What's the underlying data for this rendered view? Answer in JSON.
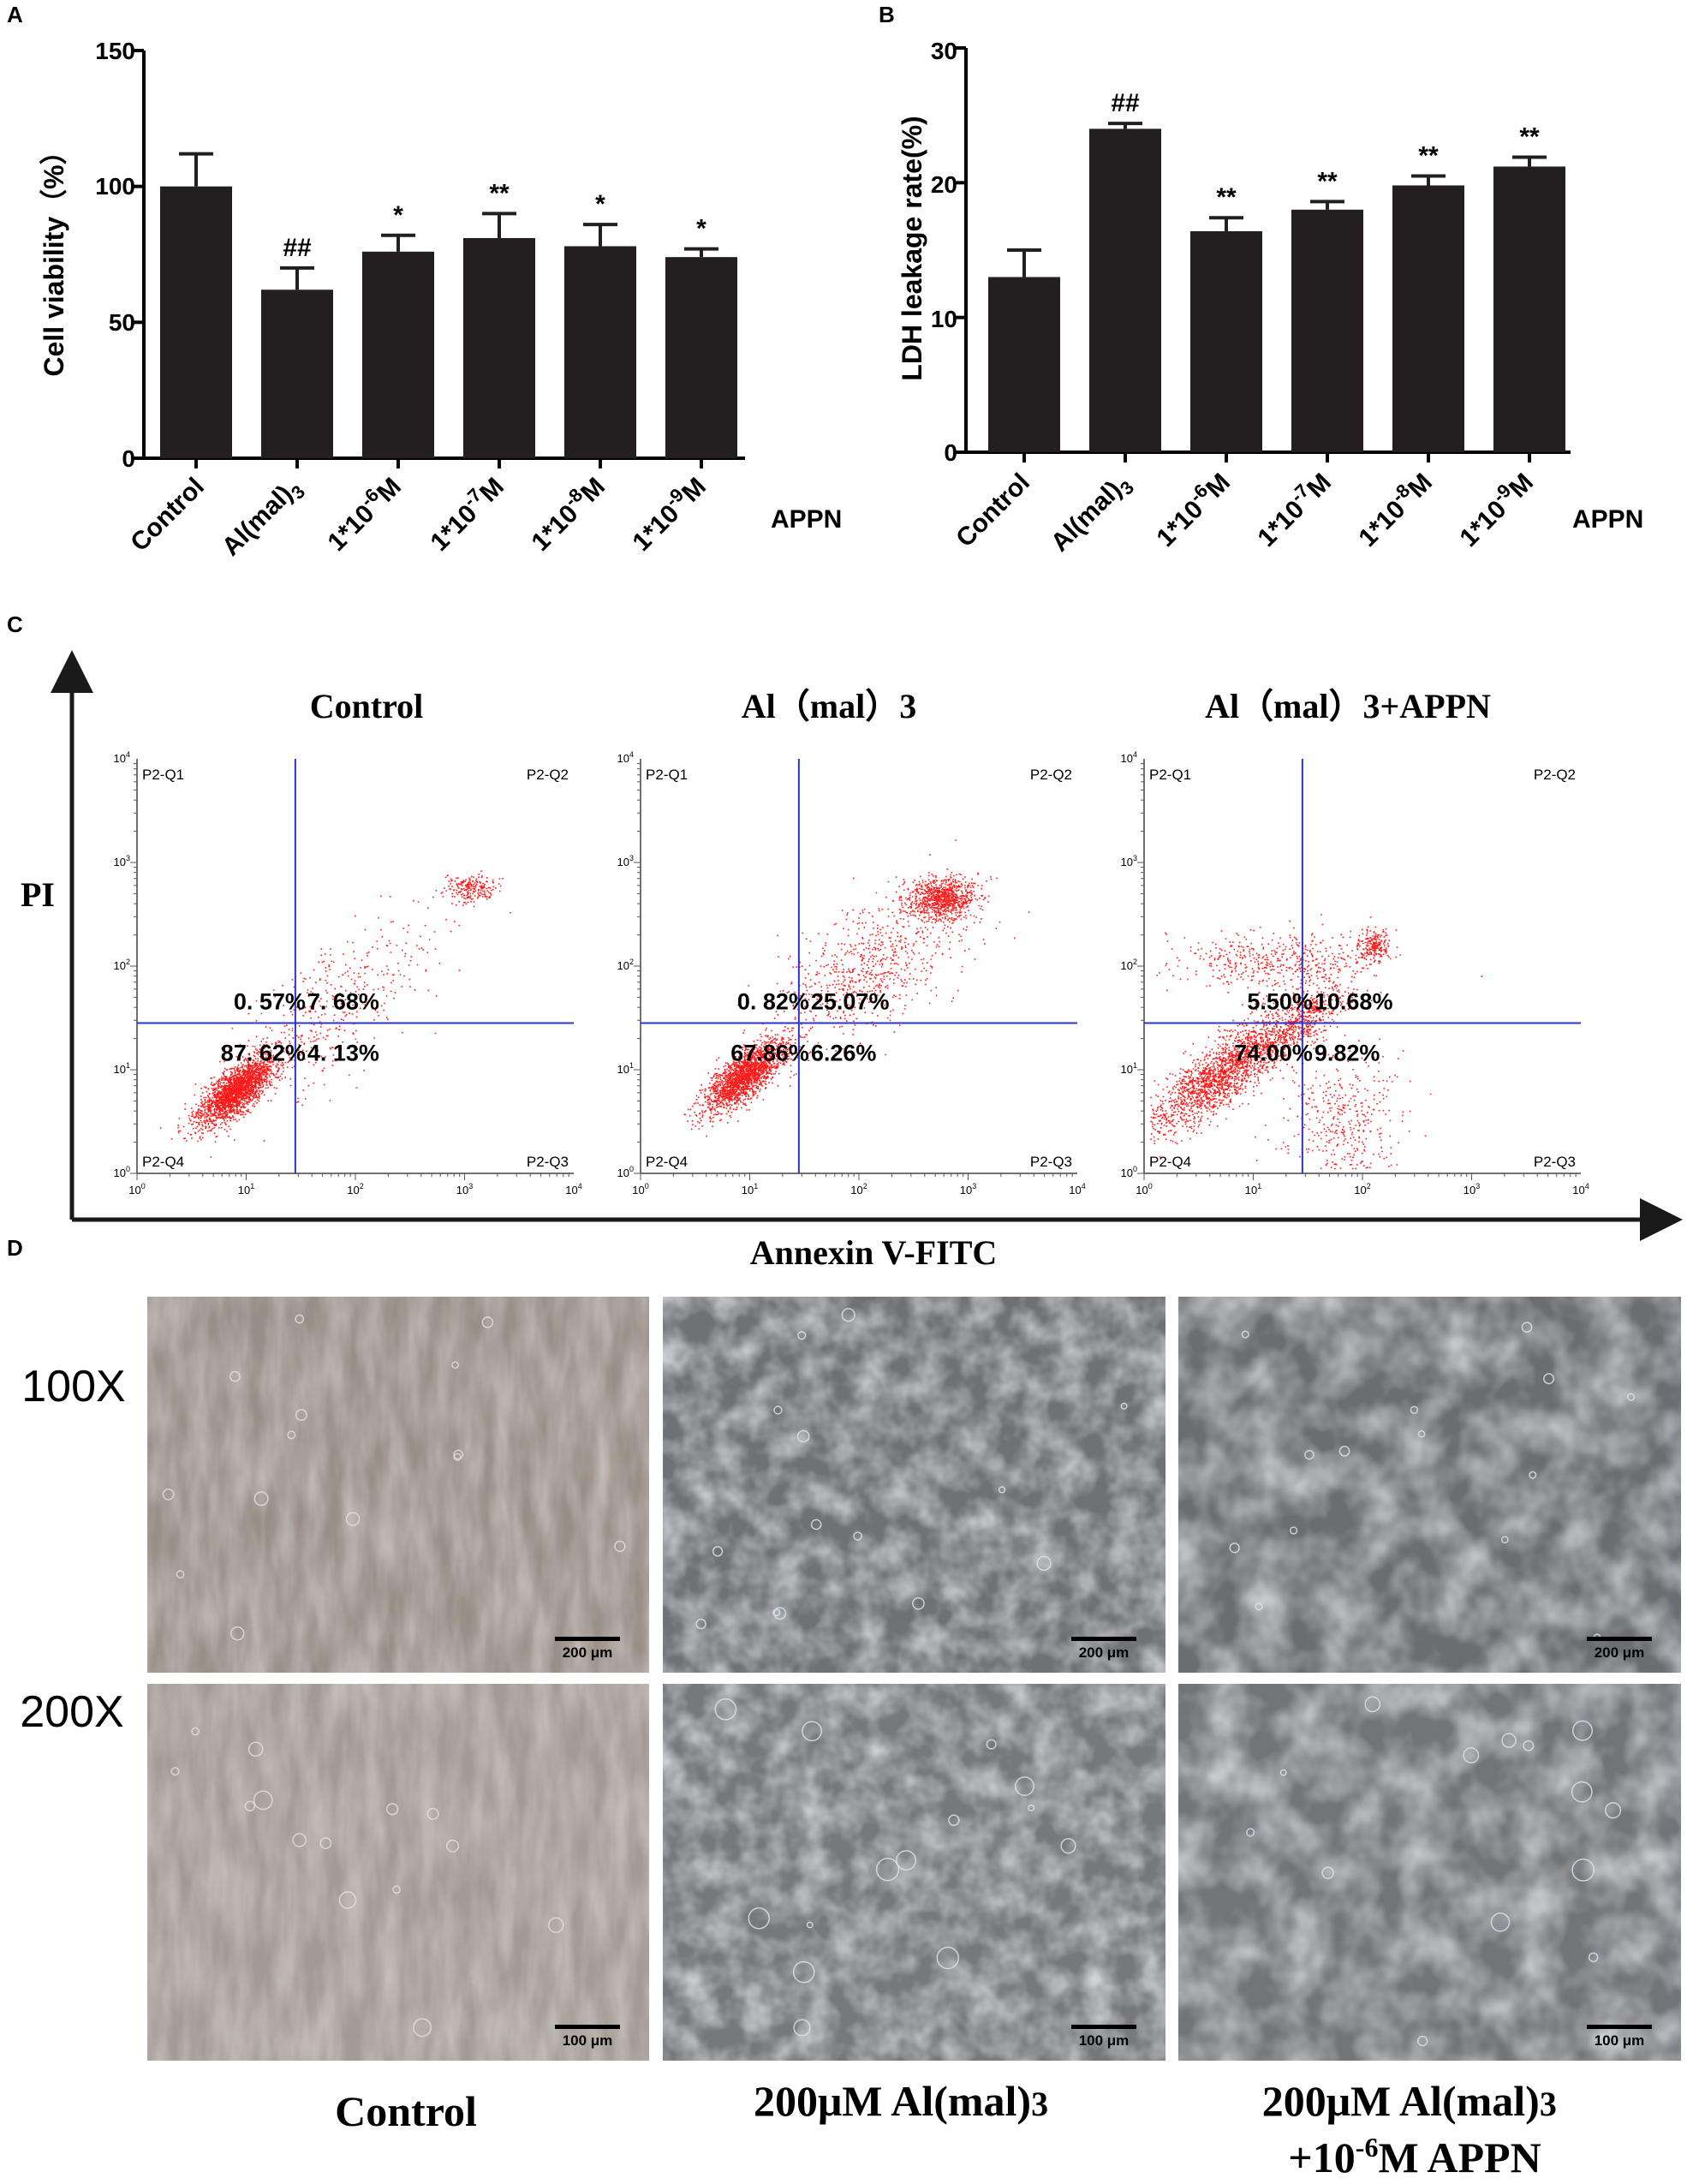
{
  "panel_letters": {
    "a": "A",
    "b": "B",
    "c": "C",
    "d": "D"
  },
  "colors": {
    "bar": "#231f20",
    "gate": "#2d35c8",
    "dots": "#ff1a1a",
    "axis": "#000000"
  },
  "chart_data": [
    {
      "type": "bar",
      "panel": "A",
      "ylabel": "Cell viability（%）",
      "ylim": [
        0,
        150
      ],
      "yticks": [
        "0",
        "50",
        "100",
        "150"
      ],
      "categories": [
        "Control",
        "Al(mal)3",
        "1*10-6M",
        "1*10-7M",
        "1*10-8M",
        "1*10-9M"
      ],
      "values": [
        100,
        62,
        76,
        81,
        78,
        74
      ],
      "errors": [
        12,
        8,
        6,
        9,
        8,
        3
      ],
      "annotations": [
        "",
        "##",
        "*",
        "**",
        "*",
        "*"
      ],
      "group_label": "APPN"
    },
    {
      "type": "bar",
      "panel": "B",
      "ylabel": "LDH leakage rate(%)",
      "ylim": [
        0,
        30
      ],
      "yticks": [
        "0",
        "10",
        "20",
        "30"
      ],
      "categories": [
        "Control",
        "Al(mal)3",
        "1*10-6M",
        "1*10-7M",
        "1*10-8M",
        "1*10-9M"
      ],
      "values": [
        13,
        24,
        16.4,
        18,
        19.8,
        21.2
      ],
      "errors": [
        2,
        0.4,
        1,
        0.6,
        0.7,
        0.7
      ],
      "annotations": [
        "",
        "##",
        "**",
        "**",
        "**",
        "**"
      ],
      "group_label": "APPN"
    },
    {
      "type": "scatter",
      "panel": "C",
      "xlabel": "Annexin V-FITC",
      "ylabel": "PI",
      "x_scale": "log",
      "y_scale": "log",
      "xlim": [
        1,
        10000
      ],
      "ylim": [
        1,
        10000
      ],
      "quadrant_labels": [
        "P2-Q1",
        "P2-Q2",
        "P2-Q3",
        "P2-Q4"
      ],
      "plots": [
        {
          "title": "Control",
          "percentages": {
            "Q1": "0. 57%",
            "Q2": "7. 68%",
            "Q3": "4. 13%",
            "Q4": "87. 62%"
          }
        },
        {
          "title": "Al（mal）3",
          "percentages": {
            "Q1": "0. 82%",
            "Q2": "25.07%",
            "Q3": "6.26%",
            "Q4": "67.86%"
          }
        },
        {
          "title": "Al（mal）3+APPN",
          "percentages": {
            "Q1": "5.50%",
            "Q2": "10.68%",
            "Q3": "9.82%",
            "Q4": "74.00%"
          }
        }
      ]
    }
  ],
  "micrographs": {
    "rows": [
      "100X",
      "200X"
    ],
    "columns": [
      "Control",
      "200μM Al(mal)3",
      "200μM Al(mal)3\n+10-6M APPN"
    ],
    "scale_bars": {
      "100X": "200 μm",
      "200X": "100 μm"
    }
  }
}
